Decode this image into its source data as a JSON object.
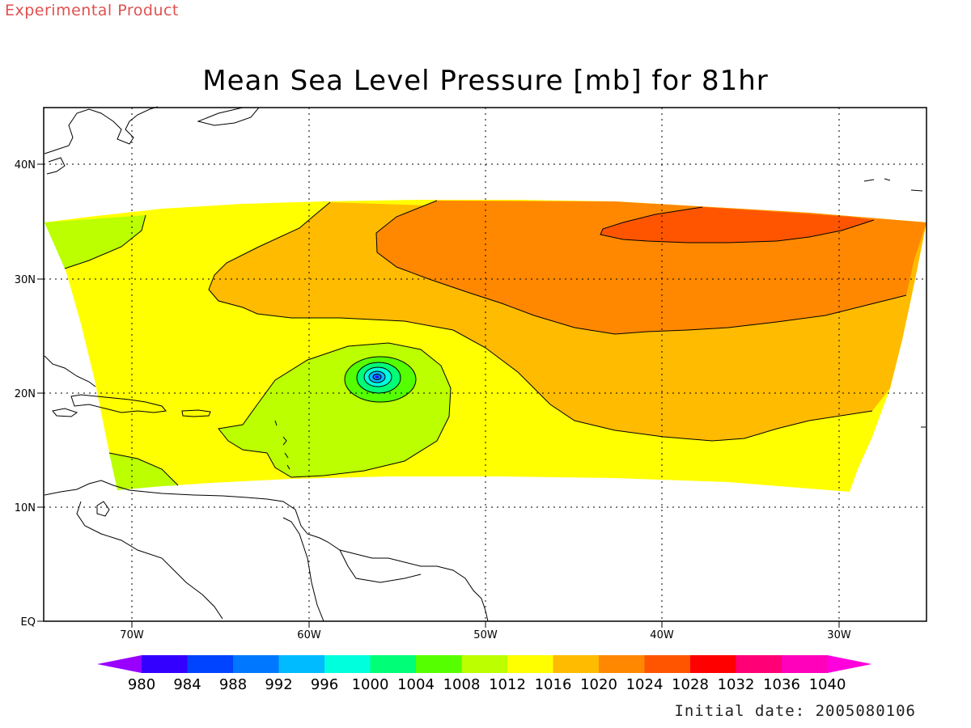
{
  "header": {
    "product_tag": "Experimental Product",
    "title": "Mean Sea Level Pressure [mb] for 81hr"
  },
  "footer": {
    "initial_date": "Initial date: 2005080106"
  },
  "map": {
    "longitude_labels": [
      "70W",
      "60W",
      "50W",
      "40W",
      "30W"
    ],
    "latitude_labels": [
      "40N",
      "30N",
      "20N",
      "10N",
      "EQ"
    ],
    "grid": "dotted",
    "low_center": "near 56W, 21N"
  },
  "colorbar": {
    "levels": [
      "980",
      "984",
      "988",
      "992",
      "996",
      "1000",
      "1004",
      "1008",
      "1012",
      "1016",
      "1020",
      "1024",
      "1028",
      "1032",
      "1036",
      "1040"
    ],
    "colors": [
      "#9900ff",
      "#3300ff",
      "#0044ff",
      "#0077ff",
      "#00bbff",
      "#00ffdd",
      "#00ff77",
      "#55ff00",
      "#bbff00",
      "#ffff00",
      "#ffbb00",
      "#ff8800",
      "#ff5500",
      "#ff0000",
      "#ff0077",
      "#ff00bb",
      "#ff00dd"
    ]
  }
}
